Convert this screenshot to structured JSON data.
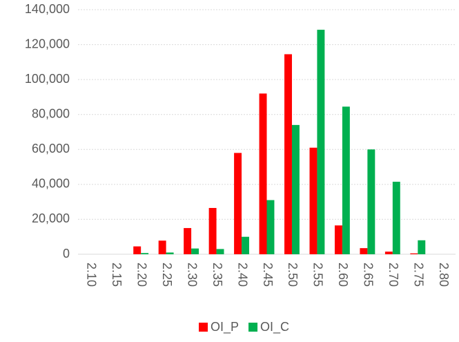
{
  "chart_data": {
    "type": "bar",
    "categories": [
      "2.10",
      "2.15",
      "2.20",
      "2.25",
      "2.30",
      "2.35",
      "2.40",
      "2.45",
      "2.50",
      "2.55",
      "2.60",
      "2.65",
      "2.70",
      "2.75",
      "2.80"
    ],
    "series": [
      {
        "name": "OI_P",
        "color": "#ff0000",
        "values": [
          0,
          0,
          4500,
          7800,
          15000,
          26500,
          58000,
          92000,
          114500,
          61000,
          16500,
          3500,
          1500,
          500,
          0
        ]
      },
      {
        "name": "OI_C",
        "color": "#00b050",
        "values": [
          0,
          0,
          700,
          1000,
          3300,
          3000,
          10000,
          31000,
          74000,
          128500,
          84500,
          60000,
          41500,
          8000,
          0
        ]
      }
    ],
    "ylim": [
      0,
      140000
    ],
    "yticks": [
      0,
      {
        "value": 20000,
        "label": "20,000"
      },
      {
        "value": 40000,
        "label": "40,000"
      },
      {
        "value": 60000,
        "label": "60,000"
      },
      {
        "value": 80000,
        "label": "80,000"
      },
      {
        "value": 100000,
        "label": "100,000"
      },
      {
        "value": 120000,
        "label": "120,000"
      },
      {
        "value": 140000,
        "label": "140,000"
      }
    ],
    "grid": true,
    "legend": "bottom"
  }
}
